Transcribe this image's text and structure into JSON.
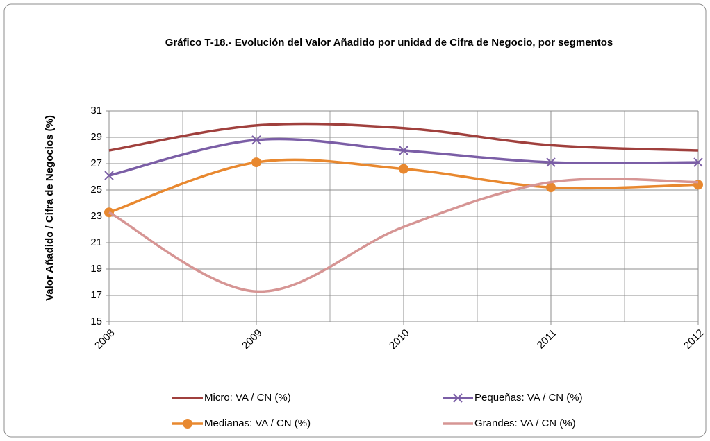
{
  "chart_data": {
    "type": "line",
    "title": "Gráfico T-18.- Evolución del Valor Añadido por unidad de Cifra de Negocio, por segmentos",
    "y_label": "Valor Añadido / Cifra de Negocios (%)",
    "categories": [
      "2008",
      "2009",
      "2010",
      "2011",
      "2012"
    ],
    "series": [
      {
        "name": "Micro: VA / CN (%)",
        "color": "#a0403d",
        "marker": null,
        "values": [
          28.0,
          29.9,
          29.7,
          28.4,
          28.0
        ]
      },
      {
        "name": "Pequeñas: VA / CN (%)",
        "color": "#7b5ea6",
        "marker": "x",
        "values": [
          26.1,
          28.8,
          28.0,
          27.1,
          27.1
        ]
      },
      {
        "name": "Medianas: VA / CN (%)",
        "color": "#e8882f",
        "marker": "circle",
        "values": [
          23.3,
          27.1,
          26.6,
          25.2,
          25.4
        ]
      },
      {
        "name": "Grandes: VA / CN (%)",
        "color": "#d69594",
        "marker": null,
        "values": [
          23.3,
          17.3,
          22.2,
          25.6,
          25.6
        ]
      }
    ],
    "ylim": [
      15,
      31
    ],
    "yticks": [
      15,
      17,
      19,
      21,
      23,
      25,
      27,
      29,
      31
    ],
    "grid": true,
    "smooth": true,
    "legend": "bottom"
  }
}
